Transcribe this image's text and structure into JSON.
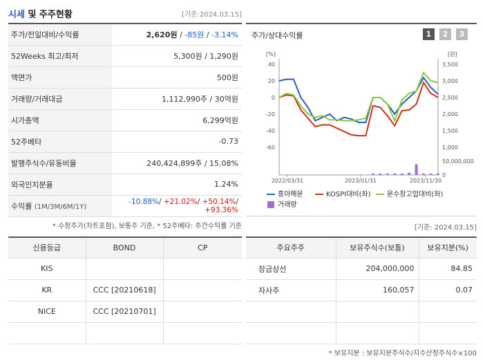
{
  "header": {
    "title_part1": "시세",
    "title_part2": " 및 주주현황",
    "asof": "[기준:2024.03.15]"
  },
  "info_rows": {
    "price_label": "주가/전일대비/수익률",
    "price_value": "2,620원",
    "price_change": "-85원",
    "price_sep": " / ",
    "price_return": "-3.14%",
    "w52_label": "52Weeks 최고/최저",
    "w52_value": "5,300원 / 1,290원",
    "par_label": "액면가",
    "par_value": "500원",
    "volume_label": "거래량/거래대금",
    "volume_value": "1,112,990주 / 30억원",
    "mcap_label": "시가총액",
    "mcap_value": "6,299억원",
    "beta_label": "52주베타",
    "beta_value": "-0.73",
    "shares_label": "발행주식수/유동비율",
    "shares_value": "240,424,899주 / 15.08%",
    "foreign_label": "외국인지분율",
    "foreign_value": "1.24%",
    "return_label": "수익률",
    "return_sub": "(1M/3M/6M/1Y)",
    "r1m": "-10.88%",
    "r3m": "+21.02%",
    "r6m": "+50.14%",
    "r1y": "+93.36%",
    "slash": "/ "
  },
  "note_left": "* 수정주가(차트포함), 보통주 기준, * 52주베타: 주간수익률 기준",
  "chart_panel": {
    "title": "주가/상대수익률",
    "pages": [
      "1",
      "2",
      "3"
    ],
    "left_unit": "[%]",
    "right_unit": "[원]",
    "legend": [
      "흥아해운",
      "KOSPI대비(좌)",
      "운수창고업대비(좌)",
      "거래량"
    ]
  },
  "chart_data": {
    "type": "line",
    "x_ticks": [
      "2022/03/31",
      "2023/01/31",
      "2023/11/30"
    ],
    "y_left_ticks": [
      "40",
      "20",
      "0",
      "-20",
      "-40",
      "-60"
    ],
    "y_left_range": [
      -60,
      40
    ],
    "y_right_ticks": [
      "3,500",
      "3,000",
      "2,500",
      "2,000",
      "1,500",
      "1,000"
    ],
    "y_right_range": [
      1000,
      3500
    ],
    "y_volume_ticks": [
      "50,000,000",
      "0"
    ],
    "series": [
      {
        "name": "흥아해운",
        "color": "#1f5fbf",
        "axis": "right",
        "values": [
          3000,
          3050,
          3050,
          2500,
          2200,
          1800,
          1900,
          2000,
          1800,
          1900,
          1850,
          1750,
          1750,
          2500,
          2500,
          2300,
          2000,
          2300,
          2500,
          2700,
          3100,
          2800,
          2600
        ]
      },
      {
        "name": "KOSPI대비(좌)",
        "color": "#d03010",
        "axis": "left",
        "values": [
          0,
          3,
          2,
          -15,
          -25,
          -35,
          -33,
          -33,
          -37,
          -41,
          -45,
          -46,
          -46,
          -10,
          -12,
          -22,
          -34,
          -16,
          -15,
          -8,
          18,
          5,
          0
        ]
      },
      {
        "name": "운수창고업대비(좌)",
        "color": "#8dc63f",
        "axis": "left",
        "values": [
          0,
          5,
          3,
          -10,
          -20,
          -24,
          -22,
          -27,
          -27,
          -28,
          -28,
          -27,
          -25,
          0,
          0,
          -8,
          -28,
          -3,
          5,
          8,
          30,
          20,
          18
        ]
      }
    ],
    "volume": {
      "name": "거래량",
      "color": "#a070d0",
      "values": [
        0,
        0,
        0,
        0,
        0,
        0,
        0,
        0,
        0,
        0,
        0,
        0,
        0,
        1,
        1,
        1,
        1,
        1,
        7,
        35,
        1,
        1,
        1
      ]
    }
  },
  "note_right_top": "[기준: 2024.03.15]",
  "credit": {
    "headers": [
      "신용등급",
      "BOND",
      "CP"
    ],
    "rows": [
      [
        "KIS",
        "",
        ""
      ],
      [
        "KR",
        "CCC   [20210618]",
        ""
      ],
      [
        "NICE",
        "CCC   [20210701]",
        ""
      ],
      [
        "",
        "",
        ""
      ]
    ]
  },
  "holders": {
    "headers": [
      "주요주주",
      "보유주식수(보통)",
      "보유지분(%)"
    ],
    "rows": [
      [
        "장금상선",
        "204,000,000",
        "84.85"
      ],
      [
        "자사주",
        "160,057",
        "0.07"
      ],
      [
        "",
        "",
        ""
      ],
      [
        "",
        "",
        ""
      ]
    ]
  },
  "note_bottom": "* 보유지분 : 보유지분주식수/지수산정주식수×100"
}
